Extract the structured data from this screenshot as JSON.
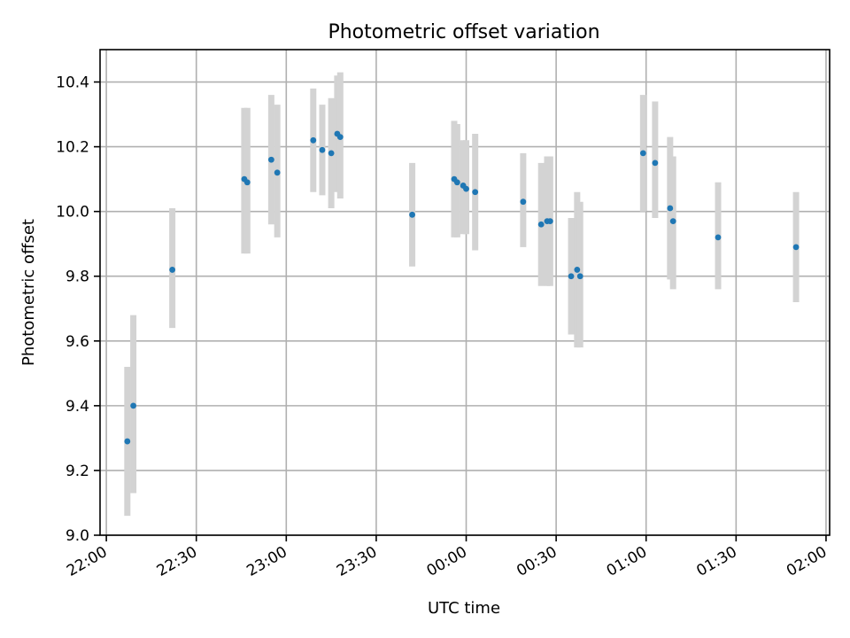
{
  "chart_data": {
    "type": "scatter",
    "title": "Photometric offset variation",
    "xlabel": "UTC time",
    "ylabel": "Photometric offset",
    "x_unit": "time of day (spans midnight)",
    "xlim": [
      "22:00",
      "02:01"
    ],
    "ylim": [
      9.0,
      10.5
    ],
    "x_ticks": [
      "22:00",
      "22:30",
      "23:00",
      "23:30",
      "00:00",
      "00:30",
      "01:00",
      "01:30",
      "02:00"
    ],
    "y_ticks": [
      "9.0",
      "9.2",
      "9.4",
      "9.6",
      "9.8",
      "10.0",
      "10.2",
      "10.4"
    ],
    "grid": true,
    "series": [
      {
        "color": "#1f77b4",
        "error_color": "#d3d3d3",
        "points": [
          {
            "x": "22:07",
            "y": 9.29,
            "ylow": 9.06,
            "yhigh": 9.52
          },
          {
            "x": "22:09",
            "y": 9.4,
            "ylow": 9.13,
            "yhigh": 9.68
          },
          {
            "x": "22:22",
            "y": 9.82,
            "ylow": 9.64,
            "yhigh": 10.01
          },
          {
            "x": "22:46",
            "y": 10.1,
            "ylow": 9.87,
            "yhigh": 10.32
          },
          {
            "x": "22:47",
            "y": 10.09,
            "ylow": 9.87,
            "yhigh": 10.32
          },
          {
            "x": "22:55",
            "y": 10.16,
            "ylow": 9.96,
            "yhigh": 10.36
          },
          {
            "x": "22:57",
            "y": 10.12,
            "ylow": 9.92,
            "yhigh": 10.33
          },
          {
            "x": "23:09",
            "y": 10.22,
            "ylow": 10.06,
            "yhigh": 10.38
          },
          {
            "x": "23:12",
            "y": 10.19,
            "ylow": 10.05,
            "yhigh": 10.33
          },
          {
            "x": "23:15",
            "y": 10.18,
            "ylow": 10.01,
            "yhigh": 10.35
          },
          {
            "x": "23:17",
            "y": 10.24,
            "ylow": 10.06,
            "yhigh": 10.42
          },
          {
            "x": "23:18",
            "y": 10.23,
            "ylow": 10.04,
            "yhigh": 10.43
          },
          {
            "x": "23:42",
            "y": 9.99,
            "ylow": 9.83,
            "yhigh": 10.15
          },
          {
            "x": "23:56",
            "y": 10.1,
            "ylow": 9.92,
            "yhigh": 10.28
          },
          {
            "x": "23:57",
            "y": 10.09,
            "ylow": 9.92,
            "yhigh": 10.27
          },
          {
            "x": "23:59",
            "y": 10.08,
            "ylow": 9.93,
            "yhigh": 10.22
          },
          {
            "x": "00:00",
            "y": 10.07,
            "ylow": 9.93,
            "yhigh": 10.22
          },
          {
            "x": "00:03",
            "y": 10.06,
            "ylow": 9.88,
            "yhigh": 10.24
          },
          {
            "x": "00:19",
            "y": 10.03,
            "ylow": 9.89,
            "yhigh": 10.18
          },
          {
            "x": "00:25",
            "y": 9.96,
            "ylow": 9.77,
            "yhigh": 10.15
          },
          {
            "x": "00:27",
            "y": 9.97,
            "ylow": 9.77,
            "yhigh": 10.17
          },
          {
            "x": "00:28",
            "y": 9.97,
            "ylow": 9.77,
            "yhigh": 10.17
          },
          {
            "x": "00:35",
            "y": 9.8,
            "ylow": 9.62,
            "yhigh": 9.98
          },
          {
            "x": "00:37",
            "y": 9.82,
            "ylow": 9.58,
            "yhigh": 10.06
          },
          {
            "x": "00:38",
            "y": 9.8,
            "ylow": 9.58,
            "yhigh": 10.03
          },
          {
            "x": "00:59",
            "y": 10.18,
            "ylow": 10.0,
            "yhigh": 10.36
          },
          {
            "x": "01:03",
            "y": 10.15,
            "ylow": 9.98,
            "yhigh": 10.34
          },
          {
            "x": "01:08",
            "y": 10.01,
            "ylow": 9.79,
            "yhigh": 10.23
          },
          {
            "x": "01:09",
            "y": 9.97,
            "ylow": 9.76,
            "yhigh": 10.17
          },
          {
            "x": "01:24",
            "y": 9.92,
            "ylow": 9.76,
            "yhigh": 10.09
          },
          {
            "x": "01:50",
            "y": 9.89,
            "ylow": 9.72,
            "yhigh": 10.06
          }
        ]
      }
    ]
  }
}
